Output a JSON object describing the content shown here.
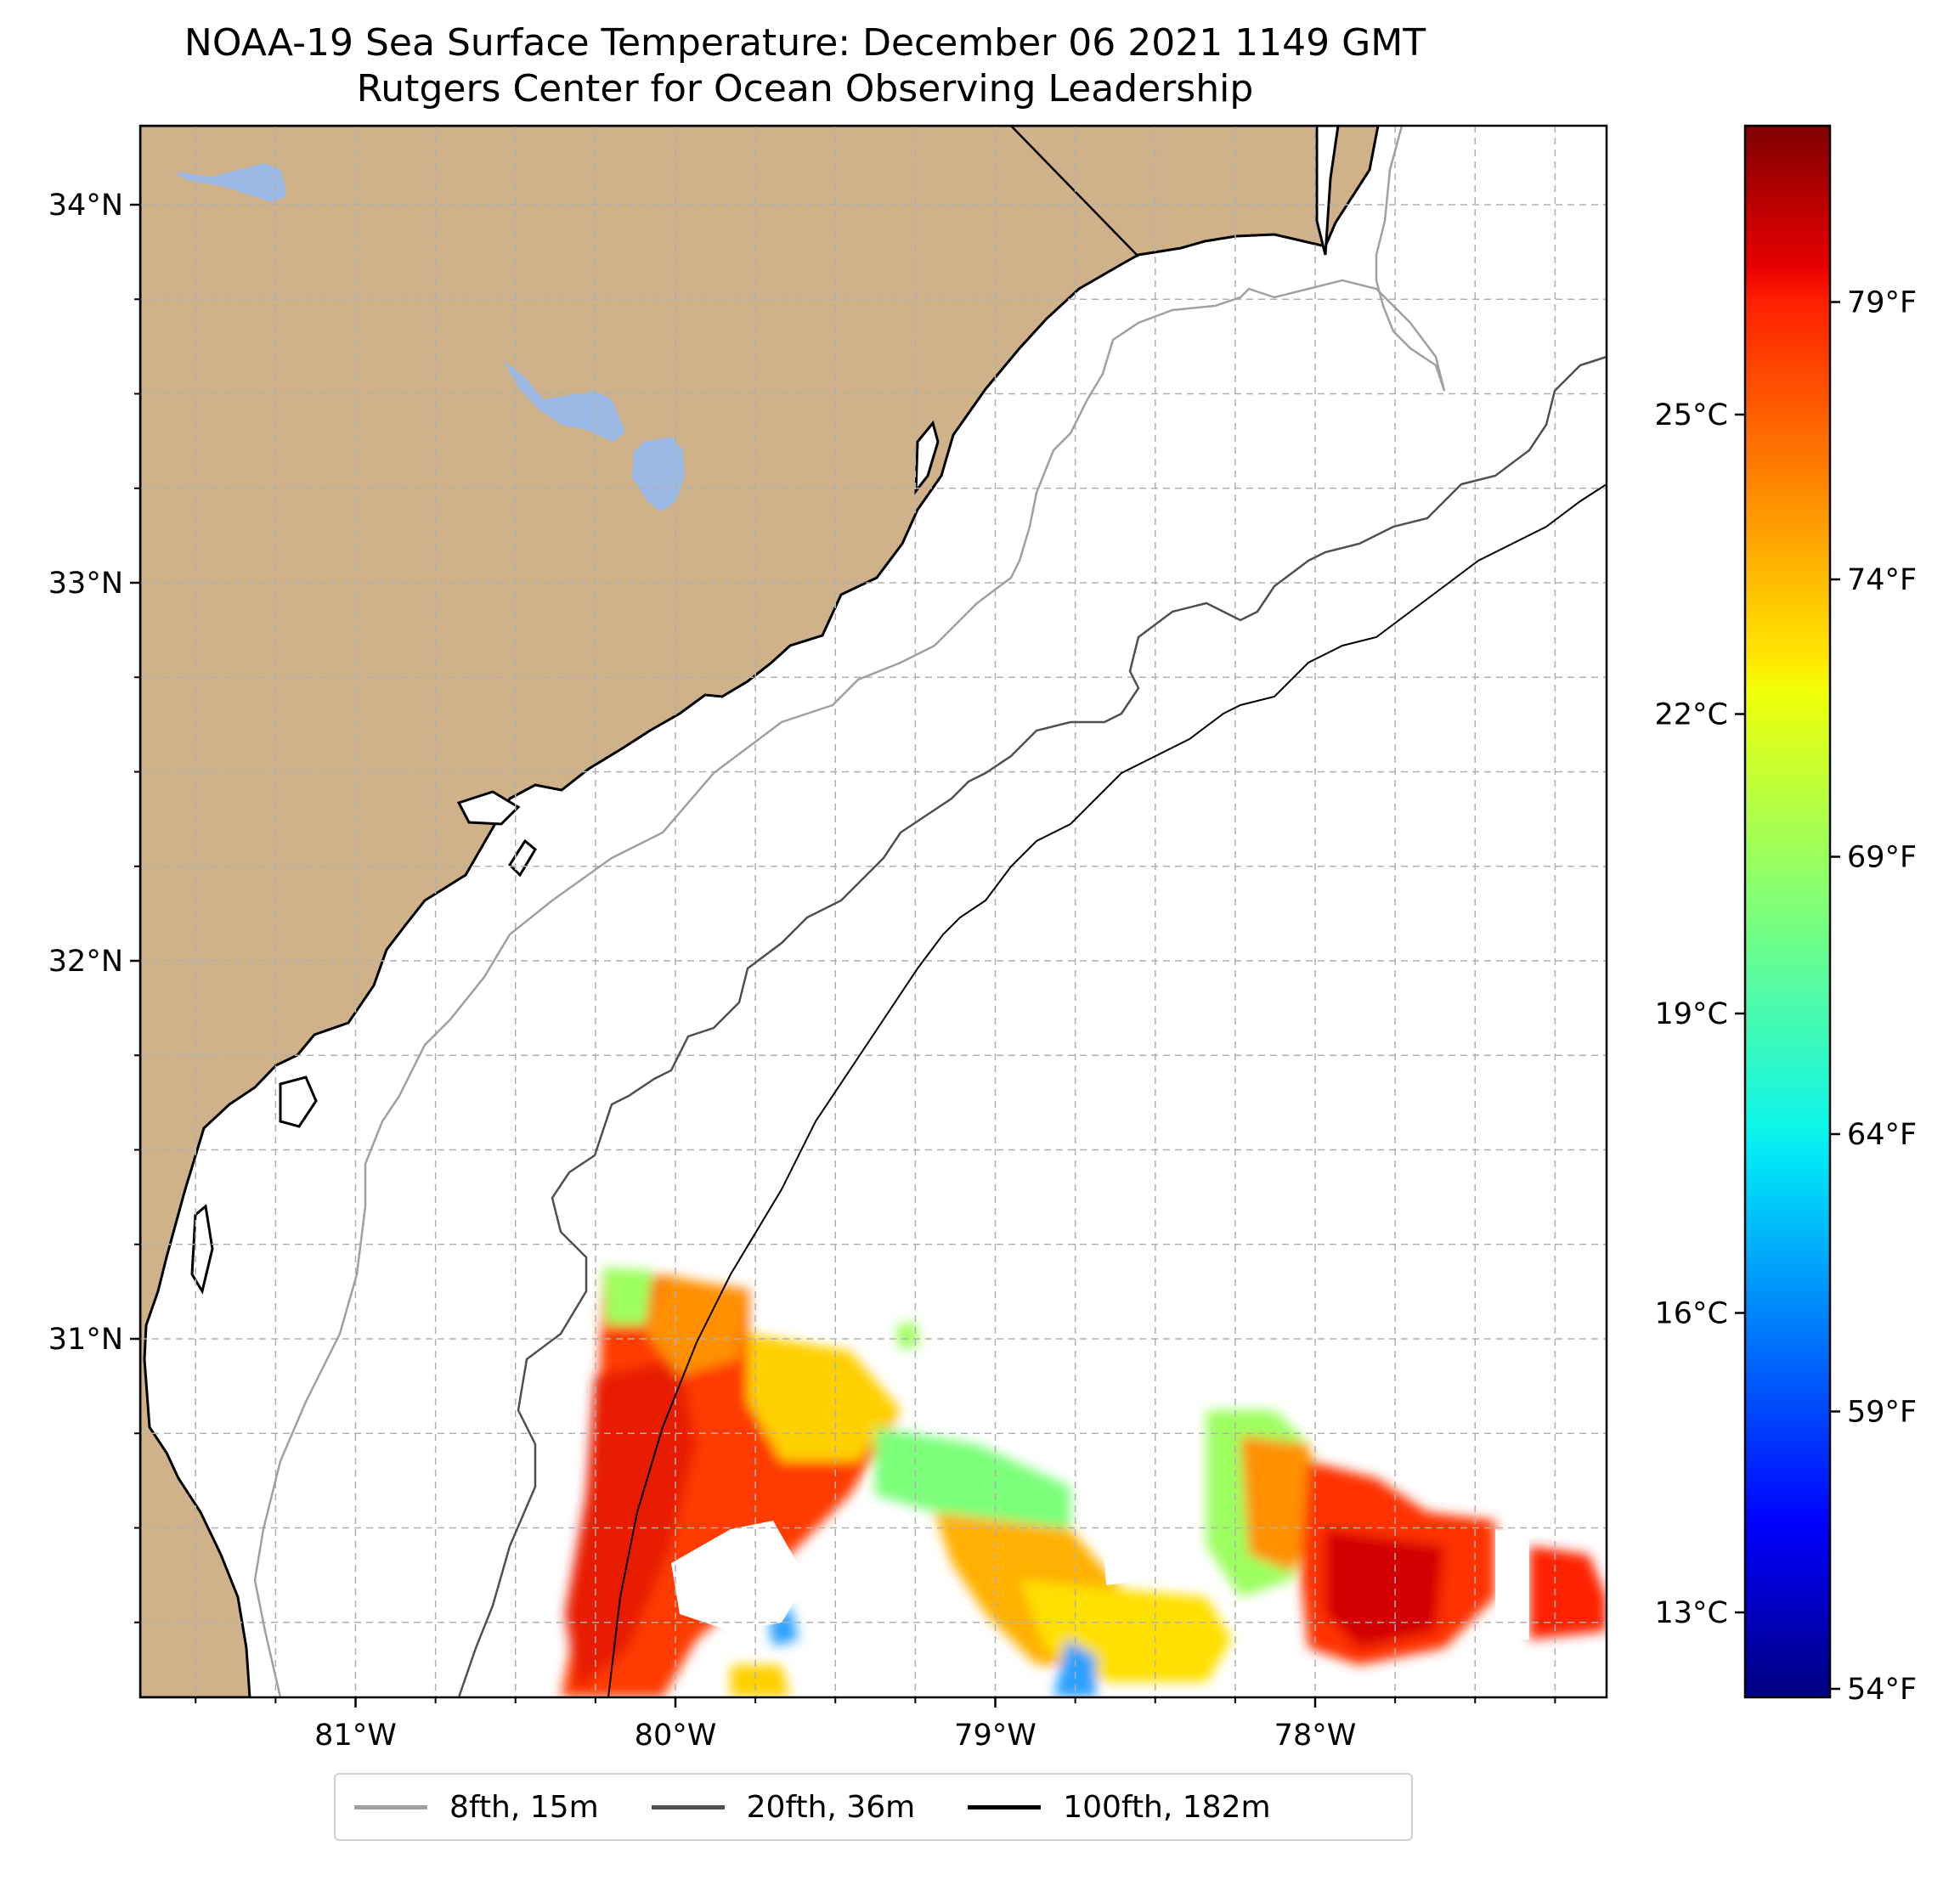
{
  "title": "NOAA-19 Sea Surface Temperature: December 06 2021 1149 GMT",
  "subtitle": "Rutgers Center for Ocean Observing Leadership",
  "colors": {
    "land": "#cfb28a",
    "lakes": "#9ab9e4",
    "contour_8fth": "#a0a0a0",
    "contour_20fth": "#505050",
    "contour_100fth": "#000000"
  },
  "map": {
    "lat_ticks": [
      {
        "value": 34,
        "label": "34°N"
      },
      {
        "value": 33,
        "label": "33°N"
      },
      {
        "value": 32,
        "label": "32°N"
      },
      {
        "value": 31,
        "label": "31°N"
      }
    ],
    "lon_ticks": [
      {
        "value": -81,
        "label": "81°W"
      },
      {
        "value": -80,
        "label": "80°W"
      },
      {
        "value": -79,
        "label": "79°W"
      },
      {
        "value": -78,
        "label": "78°W"
      }
    ]
  },
  "colorbar": {
    "celsius_ticks": [
      {
        "value": 25,
        "label": "25°C"
      },
      {
        "value": 22,
        "label": "22°C"
      },
      {
        "value": 19,
        "label": "19°C"
      },
      {
        "value": 16,
        "label": "16°C"
      },
      {
        "value": 13,
        "label": "13°C"
      }
    ],
    "fahrenheit_ticks": [
      {
        "value": 79,
        "label": "79°F"
      },
      {
        "value": 74,
        "label": "74°F"
      },
      {
        "value": 69,
        "label": "69°F"
      },
      {
        "value": 64,
        "label": "64°F"
      },
      {
        "value": 59,
        "label": "59°F"
      },
      {
        "value": 54,
        "label": "54°F"
      }
    ]
  },
  "legend": [
    {
      "label": "8fth, 15m",
      "color": "#a0a0a0"
    },
    {
      "label": "20fth, 36m",
      "color": "#505050"
    },
    {
      "label": "100fth, 182m",
      "color": "#000000"
    }
  ]
}
